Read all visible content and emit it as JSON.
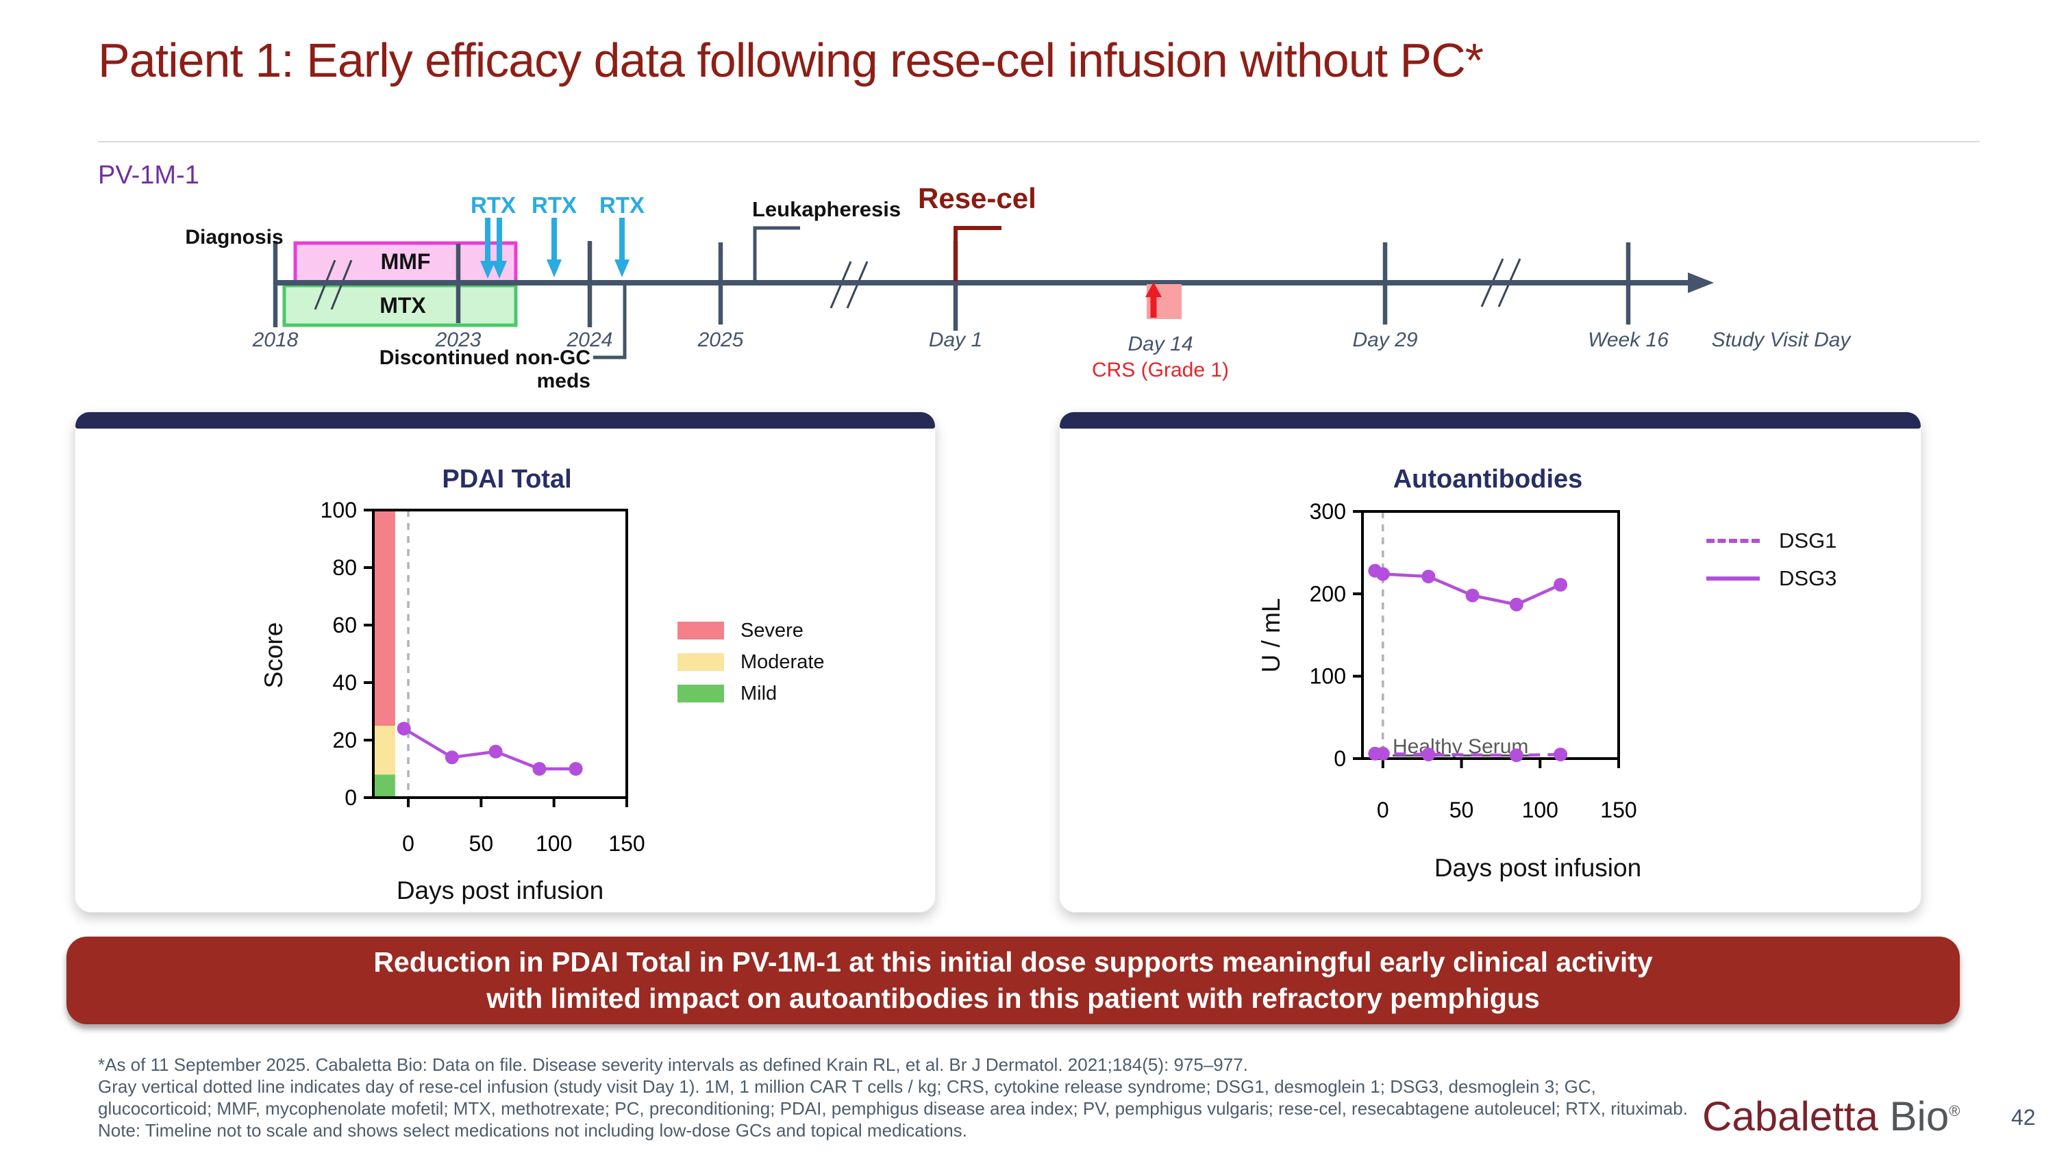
{
  "slide": {
    "title": "Patient 1: Early efficacy data following rese-cel infusion without PC*",
    "page_number": "42",
    "logo": {
      "brand_red": "Cabaletta",
      "brand_gray": "Bio",
      "registered": "®"
    }
  },
  "timeline": {
    "patient_id": "PV-1M-1",
    "labels": {
      "diagnosis": "Diagnosis",
      "mmf": "MMF",
      "mtx": "MTX",
      "rtx": "RTX",
      "leukapheresis": "Leukapheresis",
      "rese_cel": "Rese-cel",
      "discontinued": "Discontinued non-GC meds",
      "day14_event": "CRS (Grade 1)"
    },
    "ticks": [
      "2018",
      "2023",
      "2024",
      "2025",
      "Day 1",
      "Day 14",
      "Day 29",
      "Week 16"
    ],
    "axis_end_label": "Study Visit Day",
    "colors": {
      "axis": "#44546A",
      "rtx_arrow": "#29ABE2",
      "mmf_fill": "#FAC8F0",
      "mmf_border": "#E93CD8",
      "mtx_fill": "#CFF4D2",
      "mtx_border": "#4BC968",
      "rese_cel": "#8C1A10",
      "day14_box": "#F9A0A2",
      "day14_arrow": "#EB1C24",
      "patient_id_text": "#7030A0"
    }
  },
  "chart_data": [
    {
      "type": "line",
      "title": "PDAI Total",
      "xlabel": "Days post infusion",
      "ylabel": "Score",
      "xlim": [
        -24,
        150
      ],
      "ylim": [
        0,
        100
      ],
      "xticks": [
        0,
        50,
        100,
        150
      ],
      "yticks": [
        0,
        20,
        40,
        60,
        80,
        100
      ],
      "grid": false,
      "reference_line": {
        "x": 0,
        "style": "dashed",
        "color": "#B3B3B3"
      },
      "severity_bands": [
        {
          "label": "Severe",
          "y_range": [
            25,
            100
          ],
          "color": "#F4808A"
        },
        {
          "label": "Moderate",
          "y_range": [
            8,
            25
          ],
          "color": "#FBE49B"
        },
        {
          "label": "Mild",
          "y_range": [
            0,
            8
          ],
          "color": "#6CC763"
        }
      ],
      "series": [
        {
          "name": "PDAI Total",
          "color": "#B34FDC",
          "style": "solid",
          "x": [
            -3,
            30,
            60,
            90,
            115
          ],
          "y": [
            24,
            14,
            16,
            10,
            10
          ]
        }
      ],
      "legend": {
        "position": "right",
        "entries": [
          "Severe",
          "Moderate",
          "Mild"
        ]
      }
    },
    {
      "type": "line",
      "title": "Autoantibodies",
      "xlabel": "Days post infusion",
      "ylabel": "U / mL",
      "xlim": [
        -13,
        150
      ],
      "ylim": [
        0,
        300
      ],
      "xticks": [
        0,
        50,
        100,
        150
      ],
      "yticks": [
        0,
        100,
        200,
        300
      ],
      "grid": false,
      "reference_line": {
        "x": 0,
        "style": "dashed",
        "color": "#B3B3B3"
      },
      "series": [
        {
          "name": "DSG1",
          "color": "#B34FDC",
          "style": "dashed",
          "x": [
            -5,
            0,
            29,
            85,
            113
          ],
          "y": [
            6,
            6,
            5,
            4,
            5
          ]
        },
        {
          "name": "DSG3",
          "color": "#B34FDC",
          "style": "solid",
          "x": [
            -5,
            0,
            29,
            57,
            85,
            113
          ],
          "y": [
            228,
            224,
            221,
            198,
            187,
            211
          ]
        }
      ],
      "annotation": {
        "text": "Healthy Serum",
        "color": "#595959"
      },
      "legend": {
        "position": "right",
        "entries": [
          "DSG1",
          "DSG3"
        ]
      }
    }
  ],
  "banner": {
    "line1": "Reduction in PDAI Total in PV-1M-1 at this initial dose supports meaningful early clinical activity",
    "line2": "with limited impact on autoantibodies in this patient with refractory pemphigus"
  },
  "footnotes": [
    "*As of 11 September 2025. Cabaletta Bio: Data on file. Disease severity intervals as defined Krain RL, et al. Br J Dermatol. 2021;184(5): 975–977.",
    "Gray vertical dotted line indicates day of rese-cel infusion (study visit Day 1). 1M, 1 million CAR T cells / kg; CRS, cytokine release syndrome; DSG1, desmoglein 1; DSG3, desmoglein 3; GC,",
    "glucocorticoid; MMF, mycophenolate mofetil; MTX, methotrexate; PC, preconditioning; PDAI, pemphigus disease area index; PV, pemphigus vulgaris; rese-cel, resecabtagene autoleucel; RTX, rituximab.",
    "Note: Timeline not to scale and shows select medications not including low-dose GCs and topical medications."
  ]
}
